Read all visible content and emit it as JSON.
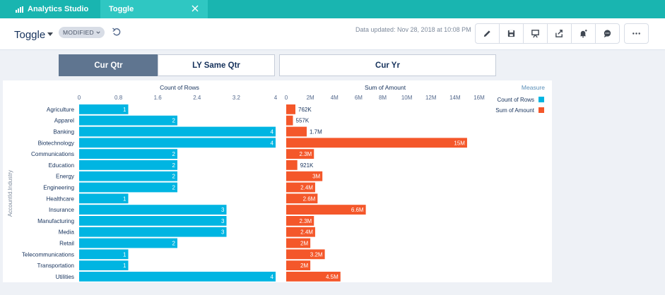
{
  "app": {
    "name": "Analytics Studio"
  },
  "tab": {
    "label": "Toggle"
  },
  "header": {
    "title": "Toggle",
    "badge": "MODIFIED",
    "updated": "Data updated: Nov 28, 2018 at 10:08 PM"
  },
  "toolbar_icons": [
    "pencil-icon",
    "save-icon",
    "present-icon",
    "share-icon",
    "notify-icon",
    "comment-icon",
    "more-icon"
  ],
  "toggles": [
    {
      "label": "Cur Qtr",
      "active": true
    },
    {
      "label": "LY Same Qtr",
      "active": false
    },
    {
      "label": "Cur Yr",
      "active": false
    }
  ],
  "chart_data": {
    "type": "bar",
    "orientation": "horizontal",
    "yaxis_label": "AccountId.Industry",
    "categories": [
      "Agriculture",
      "Apparel",
      "Banking",
      "Biotechnology",
      "Communications",
      "Education",
      "Energy",
      "Engineering",
      "Healthcare",
      "Insurance",
      "Manufacturing",
      "Media",
      "Retail",
      "Telecommunications",
      "Transportation",
      "Utilities"
    ],
    "legend": {
      "title": "Measure",
      "position": "top-right"
    },
    "series": [
      {
        "name": "Count of Rows",
        "color": "#00b5e2",
        "axis_title": "Count of Rows",
        "ticks": [
          "0",
          "0.8",
          "1.6",
          "2.4",
          "3.2",
          "4"
        ],
        "xlim": [
          0,
          4
        ],
        "values": [
          1,
          2,
          4,
          4,
          2,
          2,
          2,
          2,
          1,
          3,
          3,
          3,
          2,
          1,
          1,
          4
        ],
        "labels": [
          "1",
          "2",
          "4",
          "4",
          "2",
          "2",
          "2",
          "2",
          "1",
          "3",
          "3",
          "3",
          "2",
          "1",
          "1",
          "4"
        ]
      },
      {
        "name": "Sum of Amount",
        "color": "#f4572a",
        "axis_title": "Sum of Amount",
        "ticks": [
          "0",
          "2M",
          "4M",
          "6M",
          "8M",
          "10M",
          "12M",
          "14M",
          "16M"
        ],
        "xlim": [
          0,
          16000000
        ],
        "values": [
          762000,
          557000,
          1700000,
          15000000,
          2300000,
          921000,
          3000000,
          2400000,
          2600000,
          6600000,
          2300000,
          2400000,
          2000000,
          3200000,
          2000000,
          4500000
        ],
        "labels": [
          "762K",
          "557K",
          "1.7M",
          "15M",
          "2.3M",
          "921K",
          "3M",
          "2.4M",
          "2.6M",
          "6.6M",
          "2.3M",
          "2.4M",
          "2M",
          "3.2M",
          "2M",
          "4.5M"
        ]
      }
    ]
  }
}
